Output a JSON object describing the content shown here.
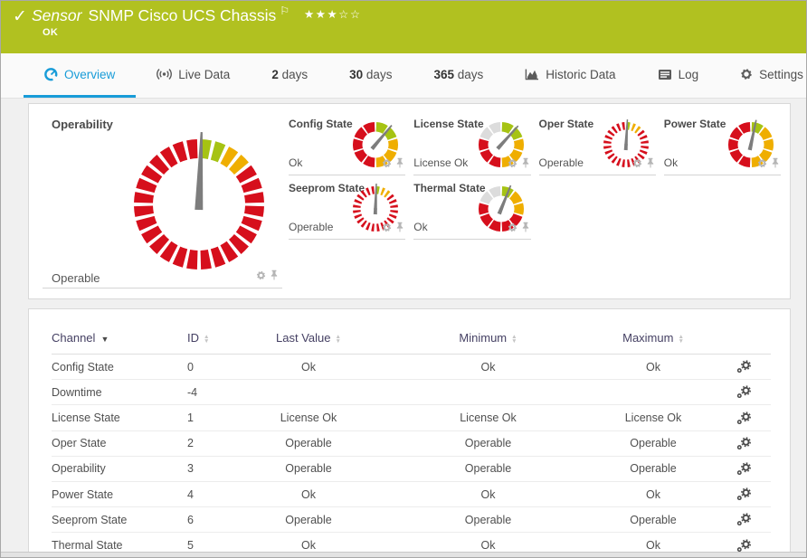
{
  "header": {
    "kind": "Sensor",
    "title": "SNMP Cisco UCS Chassis",
    "status": "OK",
    "rating": {
      "filled": 3,
      "total": 5
    }
  },
  "tabs": [
    {
      "label": "Overview",
      "icon": "gauge",
      "active": true
    },
    {
      "label": "Live Data",
      "icon": "live"
    },
    {
      "num": "2",
      "label": "days"
    },
    {
      "num": "30",
      "label": "days"
    },
    {
      "num": "365",
      "label": "days"
    },
    {
      "label": "Historic Data",
      "icon": "chart"
    },
    {
      "label": "Log",
      "icon": "log"
    },
    {
      "label": "Settings",
      "icon": "gear"
    }
  ],
  "gauges": {
    "main": {
      "label": "Operability",
      "value": "Operable",
      "style": "main",
      "default": "red",
      "overrides": {
        "0": "green",
        "1": "green",
        "2": "yellow",
        "3": "yellow"
      },
      "needle_deg": 2
    },
    "minis": [
      {
        "label": "Config State",
        "value": "Ok",
        "style": "chunky",
        "colors": [
          "green",
          "green",
          "yellow",
          "yellow",
          "yellow",
          "red",
          "red",
          "red",
          "red",
          "red"
        ],
        "needle_deg": 40
      },
      {
        "label": "License State",
        "value": "License Ok",
        "style": "chunky",
        "colors": [
          "green",
          "green",
          "yellow",
          "yellow",
          "yellow",
          "red",
          "red",
          "red",
          "gray",
          "gray"
        ],
        "needle_deg": 42
      },
      {
        "label": "Oper State",
        "value": "Operable",
        "style": "thin24",
        "default": "red",
        "overrides": {
          "0": "green",
          "1": "yellow",
          "2": "yellow"
        },
        "needle_deg": 3
      },
      {
        "label": "Power State",
        "value": "Ok",
        "style": "chunky",
        "colors": [
          "green",
          "yellow",
          "yellow",
          "yellow",
          "yellow",
          "red",
          "red",
          "red",
          "red",
          "red"
        ],
        "needle_deg": 12
      },
      {
        "label": "Seeprom State",
        "value": "Operable",
        "style": "thin24",
        "default": "red",
        "overrides": {
          "0": "green",
          "1": "yellow",
          "2": "yellow"
        },
        "needle_deg": 2
      },
      {
        "label": "Thermal State",
        "value": "Ok",
        "style": "chunky",
        "colors": [
          "green",
          "yellow",
          "yellow",
          "red",
          "red",
          "red",
          "red",
          "red",
          "gray",
          "gray"
        ],
        "needle_deg": 22
      }
    ]
  },
  "table": {
    "columns": [
      {
        "label": "Channel",
        "sort": "desc"
      },
      {
        "label": "ID",
        "sort": "both"
      },
      {
        "label": "Last Value",
        "sort": "both"
      },
      {
        "label": "Minimum",
        "sort": "both"
      },
      {
        "label": "Maximum",
        "sort": "both"
      },
      {
        "label": "",
        "sort": null
      }
    ],
    "rows": [
      {
        "channel": "Config State",
        "id": "0",
        "last_value": "Ok",
        "minimum": "Ok",
        "maximum": "Ok"
      },
      {
        "channel": "Downtime",
        "id": "-4",
        "last_value": "",
        "minimum": "",
        "maximum": ""
      },
      {
        "channel": "License State",
        "id": "1",
        "last_value": "License Ok",
        "minimum": "License Ok",
        "maximum": "License Ok"
      },
      {
        "channel": "Oper State",
        "id": "2",
        "last_value": "Operable",
        "minimum": "Operable",
        "maximum": "Operable"
      },
      {
        "channel": "Operability",
        "id": "3",
        "last_value": "Operable",
        "minimum": "Operable",
        "maximum": "Operable"
      },
      {
        "channel": "Power State",
        "id": "4",
        "last_value": "Ok",
        "minimum": "Ok",
        "maximum": "Ok"
      },
      {
        "channel": "Seeprom State",
        "id": "6",
        "last_value": "Operable",
        "minimum": "Operable",
        "maximum": "Operable"
      },
      {
        "channel": "Thermal State",
        "id": "5",
        "last_value": "Ok",
        "minimum": "Ok",
        "maximum": "Ok"
      }
    ]
  },
  "colors": {
    "header_bg": "#b1c120",
    "accent_blue": "#189cd8",
    "table_header_text": "#454063",
    "gauge_red": "#d60f1c",
    "gauge_yellow": "#efae00",
    "gauge_green": "#a6c313",
    "gauge_gray": "#dcdcdc",
    "needle": "#7d7d7d"
  }
}
